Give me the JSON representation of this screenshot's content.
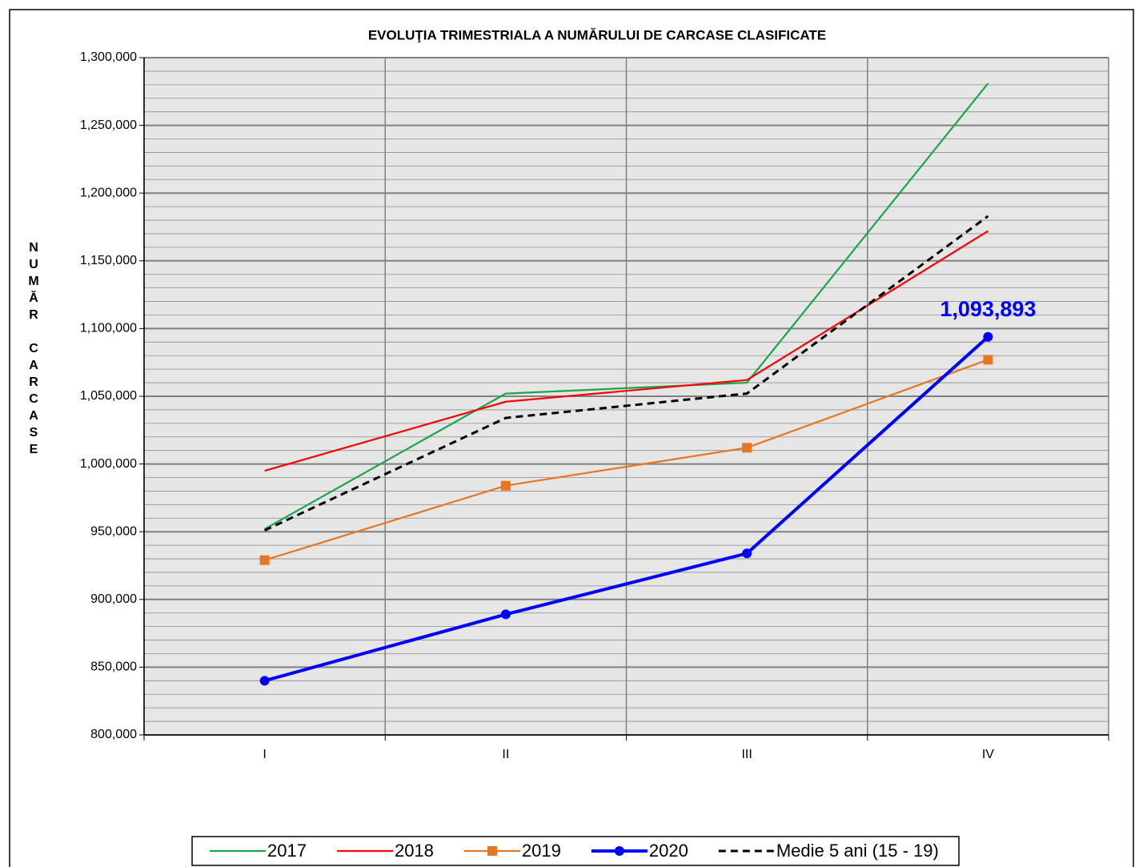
{
  "chart_data": {
    "type": "line",
    "title": "EVOLUŢIA TRIMESTRIALA  A NUMĂRULUI DE CARCASE CLASIFICATE",
    "y_label": "NUMĂR CARCASE",
    "categories": [
      "I",
      "II",
      "III",
      "IV"
    ],
    "series": [
      {
        "name": "2017",
        "color": "#1aa64a",
        "values": [
          952000,
          1052000,
          1060000,
          1281000
        ]
      },
      {
        "name": "2018",
        "color": "#ff0000",
        "values": [
          995000,
          1046000,
          1062000,
          1172000
        ]
      },
      {
        "name": "2019",
        "color": "#e8761e",
        "marker": "square",
        "values": [
          929000,
          984000,
          1012000,
          1077000
        ]
      },
      {
        "name": "2020",
        "color": "#0000ff",
        "marker": "circle",
        "values": [
          840000,
          889000,
          934000,
          1093893
        ],
        "value_labels": [
          null,
          null,
          null,
          "1,093,893"
        ]
      },
      {
        "name": "Medie 5 ani (15 - 19)",
        "color": "#000000",
        "dashed": true,
        "values": [
          951000,
          1034000,
          1052000,
          1183000
        ]
      }
    ],
    "ylim": [
      800000,
      1300000
    ],
    "yticks": [
      {
        "value": 800000,
        "label": "800,000"
      },
      {
        "value": 850000,
        "label": "850,000"
      },
      {
        "value": 900000,
        "label": "900,000"
      },
      {
        "value": 950000,
        "label": "950,000"
      },
      {
        "value": 1000000,
        "label": "1,000,000"
      },
      {
        "value": 1050000,
        "label": "1,050,000"
      },
      {
        "value": 1100000,
        "label": "1,100,000"
      },
      {
        "value": 1150000,
        "label": "1,150,000"
      },
      {
        "value": 1200000,
        "label": "1,200,000"
      },
      {
        "value": 1250000,
        "label": "1,250,000"
      },
      {
        "value": 1300000,
        "label": "1,300,000"
      }
    ],
    "grid": true,
    "minor_grid_step": 10000,
    "legend": "bottom"
  }
}
